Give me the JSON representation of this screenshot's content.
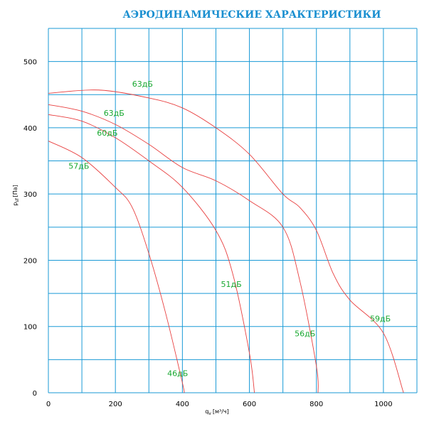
{
  "chart_data": {
    "type": "line",
    "title": "АЭРОДИНАМИЧЕСКИЕ ХАРАКТЕРИСТИКИ",
    "xlabel": "q",
    "xlabel_sub": "v",
    "xlabel_unit": "[м³/ч]",
    "ylabel": "p",
    "ylabel_sub": "sf",
    "ylabel_unit": "[Па]",
    "xlim": [
      0,
      1100
    ],
    "ylim": [
      0,
      550
    ],
    "x_ticks": [
      0,
      200,
      400,
      600,
      800,
      1000
    ],
    "y_ticks": [
      0,
      100,
      200,
      300,
      400,
      500
    ],
    "grid": true,
    "grid_step_x": 100,
    "grid_step_y": 50,
    "grid_color": "#1a9ad6",
    "line_color": "#e84040",
    "label_color": "#18a830",
    "series": [
      {
        "x": [
          0,
          100,
          200,
          250,
          300,
          350,
          400,
          405
        ],
        "y": [
          380,
          355,
          310,
          280,
          210,
          120,
          15,
          0
        ]
      },
      {
        "x": [
          0,
          100,
          200,
          300,
          400,
          500,
          550,
          600,
          615
        ],
        "y": [
          420,
          410,
          385,
          350,
          310,
          245,
          180,
          60,
          0
        ]
      },
      {
        "x": [
          0,
          100,
          200,
          300,
          400,
          500,
          600,
          700,
          750,
          800,
          805
        ],
        "y": [
          435,
          425,
          405,
          375,
          340,
          320,
          290,
          250,
          170,
          40,
          0
        ]
      },
      {
        "x": [
          0,
          150,
          300,
          400,
          500,
          600,
          700,
          750,
          800,
          850,
          900,
          1000,
          1060
        ],
        "y": [
          452,
          457,
          445,
          430,
          400,
          360,
          300,
          280,
          245,
          180,
          140,
          90,
          0
        ]
      }
    ],
    "annotations": [
      {
        "text": "63дБ",
        "x": 250,
        "y": 462
      },
      {
        "text": "63дБ",
        "x": 165,
        "y": 418
      },
      {
        "text": "60дБ",
        "x": 145,
        "y": 388
      },
      {
        "text": "57дБ",
        "x": 60,
        "y": 338
      },
      {
        "text": "46дБ",
        "x": 355,
        "y": 25
      },
      {
        "text": "51дБ",
        "x": 515,
        "y": 160
      },
      {
        "text": "56дБ",
        "x": 735,
        "y": 85
      },
      {
        "text": "59дБ",
        "x": 960,
        "y": 108
      }
    ]
  }
}
